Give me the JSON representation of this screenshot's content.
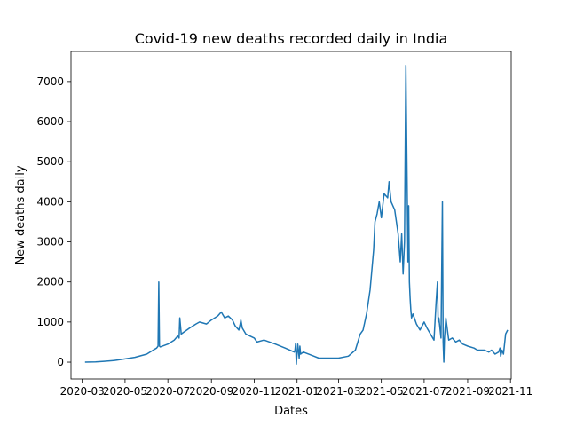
{
  "chart_data": {
    "type": "line",
    "title": "Covid-19 new deaths recorded daily in India",
    "xlabel": "Dates",
    "ylabel": "New deaths daily",
    "xlim": [
      "2020-02-14",
      "2021-11-02"
    ],
    "ylim": [
      -420,
      7750
    ],
    "grid": false,
    "line_color": "#1f77b4",
    "x_ticks": [
      "2020-03",
      "2020-05",
      "2020-07",
      "2020-09",
      "2020-11",
      "2021-01",
      "2021-03",
      "2021-05",
      "2021-07",
      "2021-09",
      "2021-11"
    ],
    "y_ticks": [
      0,
      1000,
      2000,
      3000,
      4000,
      5000,
      6000,
      7000
    ],
    "series": [
      {
        "x": [
          "2020-03-05",
          "2020-03-20",
          "2020-04-01",
          "2020-04-15",
          "2020-05-01",
          "2020-05-15",
          "2020-06-01",
          "2020-06-10",
          "2020-06-15",
          "2020-06-17",
          "2020-06-18",
          "2020-06-19",
          "2020-06-20",
          "2020-07-01",
          "2020-07-10",
          "2020-07-15",
          "2020-07-17",
          "2020-07-18",
          "2020-07-20",
          "2020-08-01",
          "2020-08-10",
          "2020-08-15",
          "2020-08-25",
          "2020-09-01",
          "2020-09-10",
          "2020-09-15",
          "2020-09-20",
          "2020-09-25",
          "2020-10-01",
          "2020-10-05",
          "2020-10-10",
          "2020-10-12",
          "2020-10-13",
          "2020-10-15",
          "2020-10-20",
          "2020-11-01",
          "2020-11-05",
          "2020-11-15",
          "2020-12-01",
          "2020-12-15",
          "2020-12-28",
          "2020-12-29",
          "2020-12-30",
          "2020-12-31",
          "2021-01-02",
          "2021-01-04",
          "2021-01-05",
          "2021-01-06",
          "2021-01-10",
          "2021-01-25",
          "2021-02-01",
          "2021-02-15",
          "2021-03-01",
          "2021-03-15",
          "2021-03-25",
          "2021-04-01",
          "2021-04-05",
          "2021-04-10",
          "2021-04-15",
          "2021-04-20",
          "2021-04-22",
          "2021-04-25",
          "2021-04-28",
          "2021-05-01",
          "2021-05-05",
          "2021-05-10",
          "2021-05-12",
          "2021-05-15",
          "2021-05-20",
          "2021-05-25",
          "2021-05-28",
          "2021-05-30",
          "2021-06-01",
          "2021-06-03",
          "2021-06-05",
          "2021-06-08",
          "2021-06-09",
          "2021-06-10",
          "2021-06-11",
          "2021-06-12",
          "2021-06-13",
          "2021-06-15",
          "2021-06-20",
          "2021-06-25",
          "2021-07-01",
          "2021-07-05",
          "2021-07-10",
          "2021-07-15",
          "2021-07-18",
          "2021-07-20",
          "2021-07-21",
          "2021-07-22",
          "2021-07-25",
          "2021-07-27",
          "2021-07-28",
          "2021-07-29",
          "2021-07-30",
          "2021-08-01",
          "2021-08-05",
          "2021-08-10",
          "2021-08-15",
          "2021-08-20",
          "2021-08-25",
          "2021-09-01",
          "2021-09-10",
          "2021-09-15",
          "2021-09-25",
          "2021-10-01",
          "2021-10-05",
          "2021-10-10",
          "2021-10-15",
          "2021-10-17",
          "2021-10-18",
          "2021-10-20",
          "2021-10-22",
          "2021-10-25",
          "2021-10-28"
        ],
        "values": [
          0,
          5,
          20,
          40,
          80,
          120,
          200,
          300,
          350,
          400,
          2000,
          400,
          380,
          450,
          550,
          650,
          600,
          1100,
          700,
          850,
          950,
          1000,
          950,
          1050,
          1150,
          1250,
          1100,
          1150,
          1050,
          900,
          800,
          950,
          1050,
          850,
          700,
          600,
          500,
          550,
          450,
          350,
          250,
          300,
          470,
          -50,
          450,
          100,
          400,
          200,
          250,
          150,
          100,
          100,
          100,
          150,
          300,
          700,
          800,
          1200,
          1800,
          2800,
          3500,
          3700,
          4000,
          3600,
          4200,
          4100,
          4500,
          4000,
          3800,
          3200,
          2500,
          3200,
          2200,
          3000,
          7400,
          2500,
          3900,
          2000,
          1600,
          1300,
          1100,
          1200,
          950,
          800,
          1000,
          850,
          700,
          550,
          1500,
          2000,
          1000,
          1100,
          600,
          4000,
          500,
          0,
          600,
          1100,
          550,
          600,
          500,
          550,
          450,
          400,
          350,
          300,
          300,
          250,
          300,
          200,
          250,
          350,
          150,
          300,
          200,
          700,
          800
        ]
      }
    ]
  }
}
